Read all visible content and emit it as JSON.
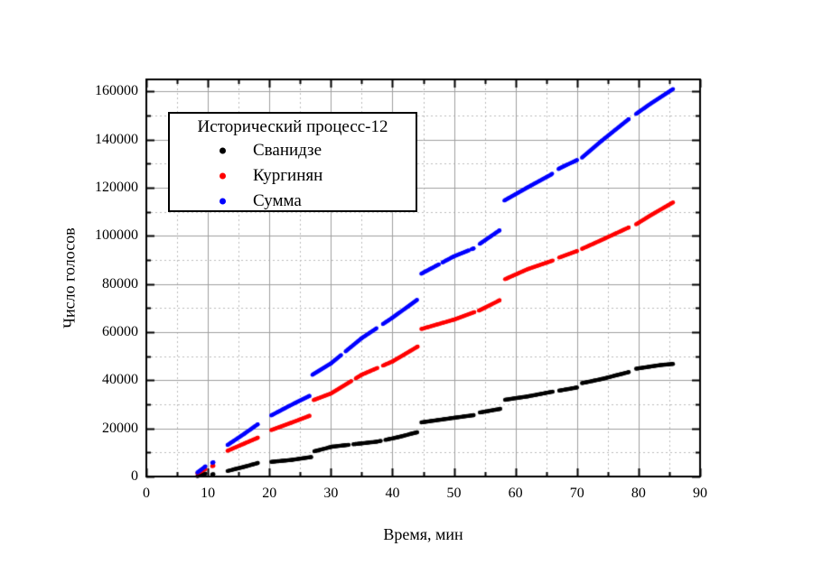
{
  "chart_data": {
    "type": "scatter",
    "legend_title": "Исторический процесс-12",
    "xlabel": "Время, мин",
    "ylabel": "Число голосов",
    "xlim": [
      0,
      90
    ],
    "ylim": [
      0,
      165000
    ],
    "x_major_tick_step": 10,
    "x_minor_tick_step": 5,
    "y_major_tick_step": 20000,
    "y_minor_tick_step": 10000,
    "x_tick_labels": [
      "0",
      "10",
      "20",
      "30",
      "40",
      "50",
      "60",
      "70",
      "80",
      "90"
    ],
    "y_tick_labels": [
      "0",
      "20000",
      "40000",
      "60000",
      "80000",
      "100000",
      "120000",
      "140000",
      "160000"
    ],
    "grid": "major solid, minor dotted",
    "legend_position": "upper-left",
    "marker": "filled circle",
    "series": [
      {
        "name": "Сванидзе",
        "color": "#000000",
        "segments": [
          {
            "points": [
              [
                8.3,
                200
              ],
              [
                9.6,
                1200
              ]
            ],
            "gaps": []
          },
          {
            "points": [
              [
                10.7,
                900
              ],
              [
                10.9,
                1000
              ]
            ],
            "gaps": []
          },
          {
            "points": [
              [
                13.2,
                2300
              ],
              [
                16.0,
                4100
              ],
              [
                18.1,
                5600
              ]
            ],
            "gaps": []
          },
          {
            "points": [
              [
                20.3,
                6100
              ],
              [
                23.6,
                6900
              ],
              [
                26.8,
                8100
              ]
            ],
            "gaps": []
          },
          {
            "points": [
              [
                27.3,
                10500
              ],
              [
                30.2,
                12400
              ],
              [
                34.0,
                13500
              ],
              [
                37.5,
                14500
              ],
              [
                41.0,
                16400
              ],
              [
                44.0,
                18400
              ]
            ],
            "gaps": [
              [
                32.9,
                33.5
              ],
              [
                38.1,
                38.7
              ]
            ]
          },
          {
            "points": [
              [
                44.7,
                22500
              ],
              [
                50.0,
                24400
              ],
              [
                53.2,
                25500
              ],
              [
                54.2,
                26600
              ],
              [
                57.5,
                28100
              ]
            ],
            "gaps": [
              [
                53.3,
                54.1
              ]
            ]
          },
          {
            "points": [
              [
                58.3,
                31900
              ],
              [
                62.0,
                33300
              ],
              [
                65.9,
                35200
              ],
              [
                67.1,
                35700
              ],
              [
                70.0,
                37000
              ]
            ],
            "gaps": [
              [
                66.1,
                67.0
              ]
            ]
          },
          {
            "points": [
              [
                70.8,
                38800
              ],
              [
                74.0,
                40500
              ],
              [
                78.4,
                43400
              ],
              [
                79.6,
                44800
              ],
              [
                83.5,
                46300
              ],
              [
                85.6,
                46800
              ]
            ],
            "gaps": [
              [
                78.5,
                79.5
              ]
            ]
          }
        ]
      },
      {
        "name": "Кургинян",
        "color": "#ff0000",
        "segments": [
          {
            "points": [
              [
                8.3,
                1400
              ],
              [
                9.6,
                3100
              ]
            ],
            "gaps": []
          },
          {
            "points": [
              [
                10.7,
                4300
              ],
              [
                10.9,
                4500
              ]
            ],
            "gaps": []
          },
          {
            "points": [
              [
                13.2,
                10700
              ],
              [
                16.0,
                13800
              ],
              [
                18.1,
                16100
              ]
            ],
            "gaps": []
          },
          {
            "points": [
              [
                20.3,
                19300
              ],
              [
                23.5,
                22300
              ],
              [
                26.5,
                25200
              ]
            ],
            "gaps": []
          },
          {
            "points": [
              [
                27.2,
                31800
              ],
              [
                30.0,
                34500
              ],
              [
                35.0,
                42300
              ],
              [
                40.0,
                47800
              ],
              [
                44.1,
                54000
              ]
            ],
            "gaps": [
              [
                33.4,
                34.0
              ],
              [
                37.6,
                38.4
              ]
            ]
          },
          {
            "points": [
              [
                44.7,
                61300
              ],
              [
                50.0,
                65200
              ],
              [
                53.3,
                68300
              ],
              [
                54.1,
                69000
              ],
              [
                57.4,
                73200
              ]
            ],
            "gaps": [
              [
                53.4,
                54.0
              ]
            ]
          },
          {
            "points": [
              [
                58.3,
                82000
              ],
              [
                62.0,
                86200
              ],
              [
                65.9,
                89600
              ],
              [
                67.1,
                91000
              ],
              [
                70.0,
                93700
              ]
            ],
            "gaps": [
              [
                66.1,
                67.0
              ]
            ]
          },
          {
            "points": [
              [
                70.8,
                94600
              ],
              [
                74.0,
                98300
              ],
              [
                78.4,
                103500
              ],
              [
                79.6,
                104800
              ],
              [
                82.0,
                108600
              ],
              [
                85.6,
                113900
              ]
            ],
            "gaps": [
              [
                78.5,
                79.5
              ]
            ]
          }
        ]
      },
      {
        "name": "Сумма",
        "color": "#0000ff",
        "segments": [
          {
            "points": [
              [
                8.3,
                1700
              ],
              [
                9.6,
                4200
              ]
            ],
            "gaps": []
          },
          {
            "points": [
              [
                10.7,
                5700
              ],
              [
                10.9,
                5900
              ]
            ],
            "gaps": []
          },
          {
            "points": [
              [
                13.2,
                13100
              ],
              [
                16.0,
                17900
              ],
              [
                18.1,
                21700
              ]
            ],
            "gaps": []
          },
          {
            "points": [
              [
                20.3,
                25400
              ],
              [
                23.2,
                29300
              ],
              [
                26.5,
                33500
              ]
            ],
            "gaps": []
          },
          {
            "points": [
              [
                27.0,
                42300
              ],
              [
                30.0,
                47000
              ],
              [
                35.0,
                57500
              ],
              [
                40.0,
                66000
              ],
              [
                44.0,
                73400
              ]
            ],
            "gaps": [
              [
                31.7,
                32.3
              ],
              [
                37.5,
                38.3
              ]
            ]
          },
          {
            "points": [
              [
                44.7,
                84300
              ],
              [
                50.0,
                91500
              ],
              [
                53.2,
                94800
              ],
              [
                54.2,
                96700
              ],
              [
                57.4,
                102300
              ]
            ],
            "gaps": [
              [
                47.6,
                48.0
              ],
              [
                52.5,
                52.8
              ],
              [
                53.3,
                54.1
              ]
            ]
          },
          {
            "points": [
              [
                58.2,
                114700
              ],
              [
                62.0,
                120200
              ],
              [
                65.8,
                125500
              ],
              [
                67.1,
                128000
              ],
              [
                70.0,
                131500
              ]
            ],
            "gaps": [
              [
                66.0,
                67.0
              ]
            ]
          },
          {
            "points": [
              [
                70.8,
                132500
              ],
              [
                74.0,
                139500
              ],
              [
                78.4,
                148500
              ],
              [
                79.6,
                150700
              ],
              [
                82.0,
                155000
              ],
              [
                85.6,
                161000
              ]
            ],
            "gaps": [
              [
                78.5,
                79.5
              ]
            ]
          }
        ]
      }
    ],
    "colors": {
      "frame": "#000000",
      "major_grid": "#a0a0a0",
      "minor_grid": "#bcbcbc",
      "background": "#ffffff"
    }
  }
}
